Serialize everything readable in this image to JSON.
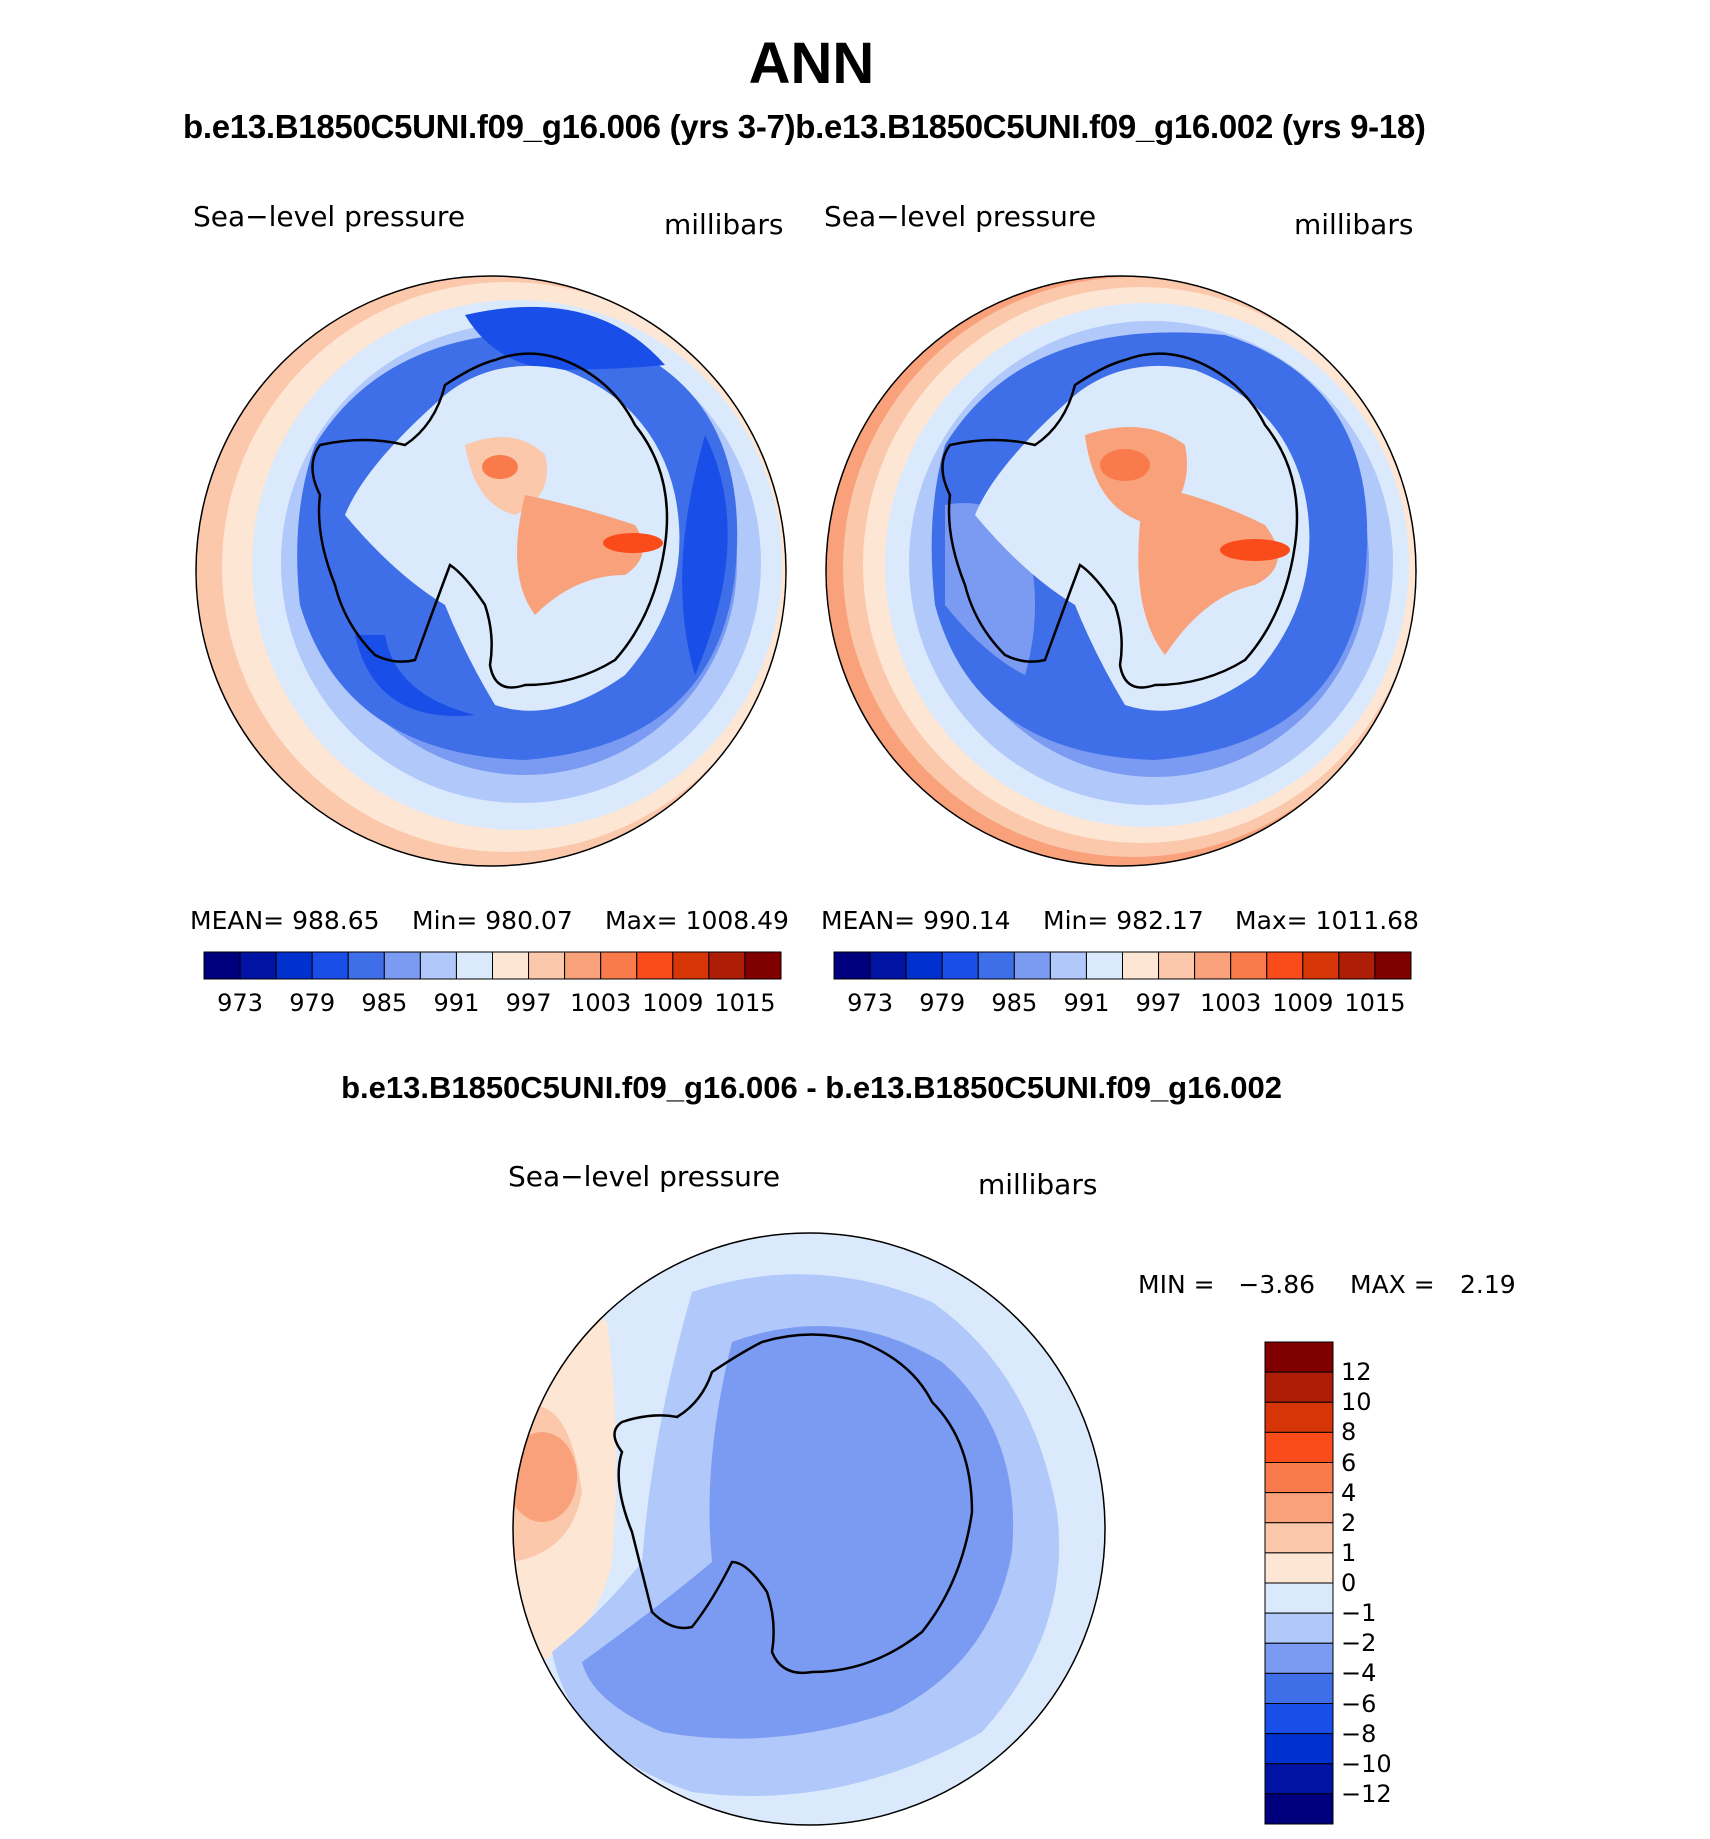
{
  "title": "ANN",
  "subtitle": {
    "left": "b.e13.B1850C5UNI.f09_g16.006 (yrs 3-7)",
    "right": "b.e13.B1850C5UNI.f09_g16.002 (yrs 9-18)"
  },
  "panels": [
    {
      "variable": "Sea−level pressure",
      "units": "millibars",
      "mean": "MEAN=  988.65",
      "min": "Min=  980.07",
      "max": "Max=  1008.49"
    },
    {
      "variable": "Sea−level pressure",
      "units": "millibars",
      "mean": "MEAN=  990.14",
      "min": "Min=  982.17",
      "max": "Max=  1011.68"
    }
  ],
  "abs_colorbar": {
    "colors": [
      "#00007f",
      "#0013a3",
      "#0031cf",
      "#1a4ee9",
      "#3f6fe8",
      "#7b9bf2",
      "#b0c8fa",
      "#dbe9fc",
      "#fde6d4",
      "#fbc8ac",
      "#f8a17b",
      "#f97a4a",
      "#fa4b1a",
      "#d63508",
      "#ae1e06",
      "#800000"
    ],
    "labels": [
      "973",
      "979",
      "985",
      "991",
      "997",
      "1003",
      "1009",
      "1015"
    ]
  },
  "difference": {
    "title": "b.e13.B1850C5UNI.f09_g16.006 - b.e13.B1850C5UNI.f09_g16.002",
    "variable": "Sea−level pressure",
    "units": "millibars",
    "min_label": "MIN =",
    "min_value": "−3.86",
    "max_label": "MAX =",
    "max_value": "2.19"
  },
  "diff_colorbar": {
    "colors": [
      "#800000",
      "#ae1e06",
      "#d63508",
      "#fa4b1a",
      "#f97a4a",
      "#f8a17b",
      "#fbc8ac",
      "#fde6d4",
      "#dbe9fc",
      "#b0c8fa",
      "#7b9bf2",
      "#3f6fe8",
      "#1a4ee9",
      "#0031cf",
      "#0013a3",
      "#00007f"
    ],
    "labels": [
      "12",
      "10",
      "8",
      "6",
      "4",
      "2",
      "1",
      "0",
      "−1",
      "−2",
      "−4",
      "−6",
      "−8",
      "−10",
      "−12"
    ]
  }
}
